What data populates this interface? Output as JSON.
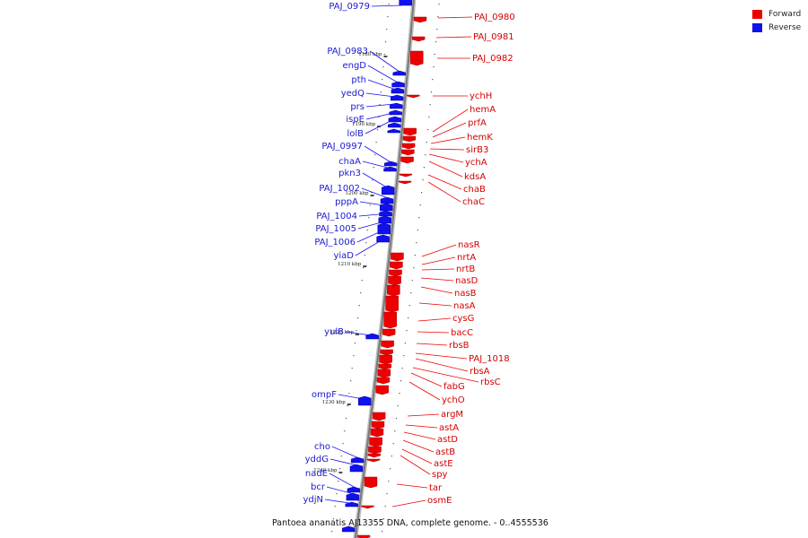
{
  "legend": {
    "forward_label": "Forward",
    "reverse_label": "Reverse",
    "forward_color": "#ee0000",
    "reverse_color": "#1111ee"
  },
  "caption": "Pantoea ananatis AJ13355 DNA, complete genome. - 0..4555536",
  "ticks": [
    "1180 kbp",
    "1190 kbp",
    "1200 kbp",
    "1210 kbp",
    "1220 kbp",
    "1230 kbp",
    "1240 kbp"
  ],
  "forward_genes": [
    "PAJ_0980",
    "PAJ_0981",
    "PAJ_0982",
    "ychH",
    "hemA",
    "prfA",
    "hemK",
    "sirB3",
    "ychA",
    "kdsA",
    "chaB",
    "chaC",
    "nasR",
    "nrtA",
    "nrtB",
    "nasD",
    "nasB",
    "nasA",
    "cysG",
    "bacC",
    "rbsB",
    "PAJ_1018",
    "rbsA",
    "rbsC",
    "fabG",
    "ychO",
    "argM",
    "astA",
    "astD",
    "astB",
    "astE",
    "spy",
    "tar",
    "osmE"
  ],
  "reverse_genes": [
    "PAJ_0979",
    "PAJ_0983",
    "engD",
    "pth",
    "yedQ",
    "prs",
    "ispE",
    "lolB",
    "PAJ_0997",
    "chaA",
    "pkn3",
    "PAJ_1002",
    "pppA",
    "PAJ_1004",
    "PAJ_1005",
    "PAJ_1006",
    "yiaD",
    "yulB",
    "ompF",
    "cho",
    "yddG",
    "nadE",
    "bcr",
    "ydjN"
  ]
}
